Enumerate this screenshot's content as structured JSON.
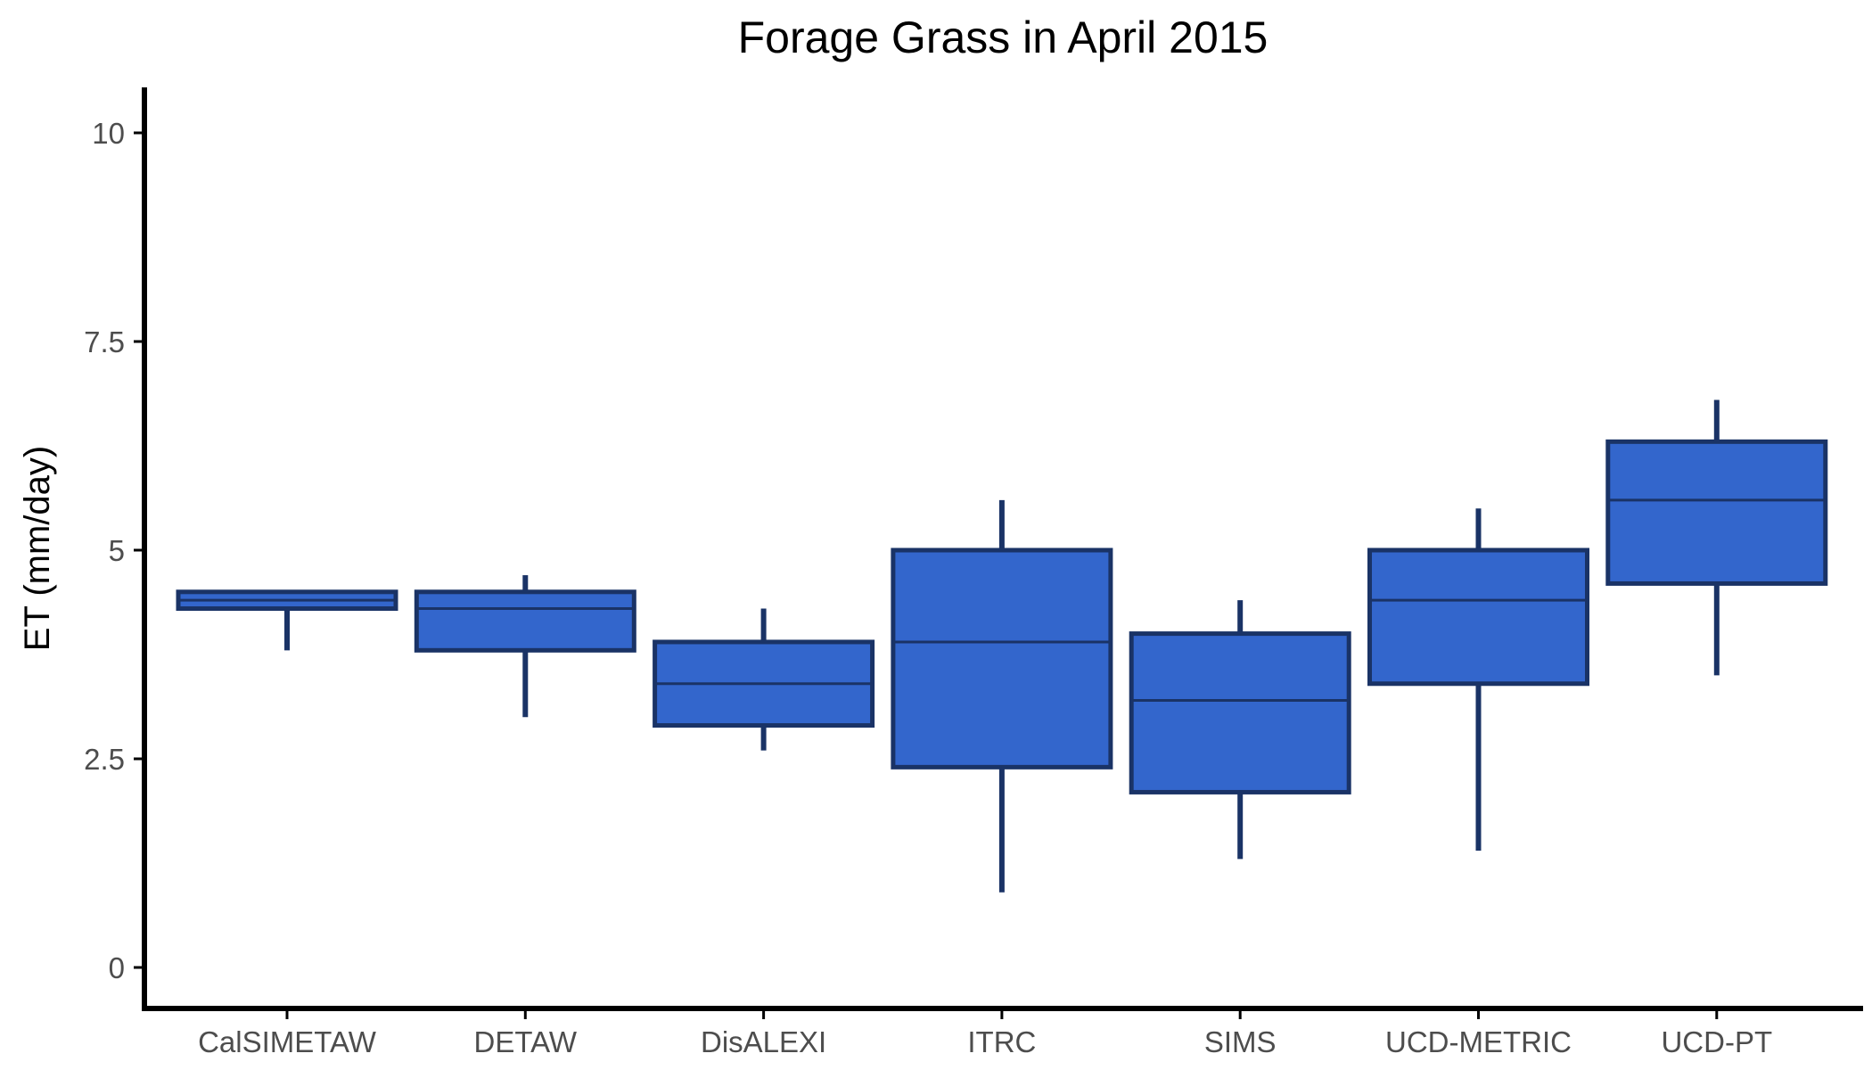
{
  "chart_data": {
    "type": "boxplot",
    "title": "Forage Grass in April 2015",
    "xlabel": "",
    "ylabel": "ET (mm/day)",
    "ylim": [
      -0.5,
      10.5
    ],
    "yticks": [
      0,
      2.5,
      5,
      7.5,
      10
    ],
    "ytick_labels": [
      "0",
      "2.5",
      "5",
      "7.5",
      "10"
    ],
    "grid": false,
    "legend": "none",
    "categories": [
      "CalSIMETAW",
      "DETAW",
      "DisALEXI",
      "ITRC",
      "SIMS",
      "UCD-METRIC",
      "UCD-PT"
    ],
    "boxes": [
      {
        "label": "CalSIMETAW",
        "min": 3.8,
        "q1": 4.3,
        "median": 4.4,
        "q3": 4.5,
        "max": 4.5
      },
      {
        "label": "DETAW",
        "min": 3.0,
        "q1": 3.8,
        "median": 4.3,
        "q3": 4.5,
        "max": 4.7
      },
      {
        "label": "DisALEXI",
        "min": 2.6,
        "q1": 2.9,
        "median": 3.4,
        "q3": 3.9,
        "max": 4.3
      },
      {
        "label": "ITRC",
        "min": 0.9,
        "q1": 2.4,
        "median": 3.9,
        "q3": 5.0,
        "max": 5.6
      },
      {
        "label": "SIMS",
        "min": 1.3,
        "q1": 2.1,
        "median": 3.2,
        "q3": 4.0,
        "max": 4.4
      },
      {
        "label": "UCD-METRIC",
        "min": 1.4,
        "q1": 3.4,
        "median": 4.4,
        "q3": 5.0,
        "max": 5.5
      },
      {
        "label": "UCD-PT",
        "min": 3.5,
        "q1": 4.6,
        "median": 5.6,
        "q3": 6.3,
        "max": 6.8
      }
    ],
    "colors": {
      "fill": "#3366cc",
      "stroke": "#1a3366",
      "axis": "#000000",
      "tick_label": "#4d4d4d"
    }
  }
}
